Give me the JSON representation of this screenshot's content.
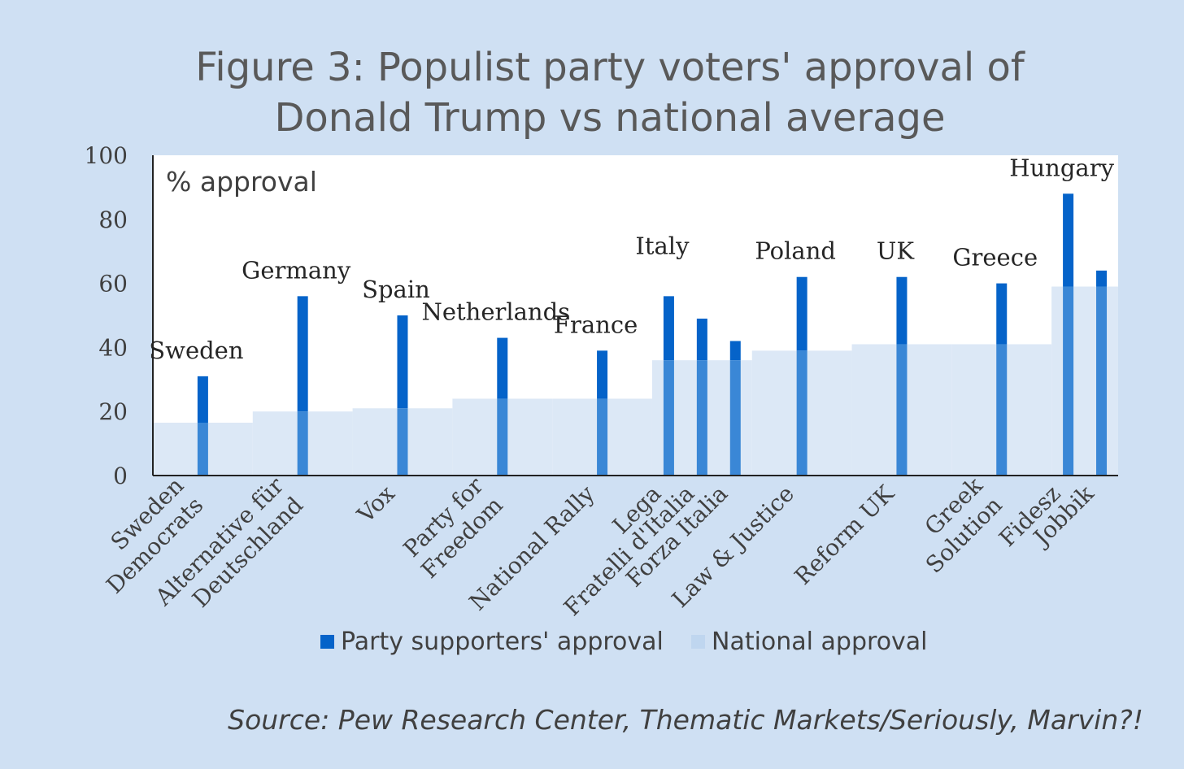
{
  "chart_data": {
    "type": "bar",
    "title": [
      "Figure 3: Populist party voters' approval of",
      "Donald Trump vs national average"
    ],
    "ylabel": "% approval",
    "ylim": [
      0,
      100
    ],
    "yticks": [
      0,
      20,
      40,
      60,
      80,
      100
    ],
    "grid": false,
    "legend_position": "bottom",
    "groups": [
      {
        "country": "Sweden",
        "national": 16.5,
        "parties": [
          null,
          {
            "name": [
              "Sweden",
              "Democrats"
            ],
            "value": 31
          },
          null
        ]
      },
      {
        "country": "Germany",
        "national": 20,
        "parties": [
          null,
          {
            "name": [
              "Alternative für",
              "Deutschland"
            ],
            "value": 56
          },
          null
        ]
      },
      {
        "country": "Spain",
        "national": 21,
        "parties": [
          null,
          {
            "name": [
              "Vox"
            ],
            "value": 50
          },
          null
        ]
      },
      {
        "country": "Netherlands",
        "national": 24,
        "parties": [
          null,
          {
            "name": [
              "Party for",
              "Freedom"
            ],
            "value": 43
          },
          null
        ]
      },
      {
        "country": "France",
        "national": 24,
        "parties": [
          null,
          {
            "name": [
              "National Rally"
            ],
            "value": 39
          },
          null
        ]
      },
      {
        "country": "Italy",
        "national": 36,
        "parties": [
          {
            "name": [
              "Lega"
            ],
            "value": 56
          },
          {
            "name": [
              "Fratelli d'Italia"
            ],
            "value": 49
          },
          {
            "name": [
              "Forza Italia"
            ],
            "value": 42
          }
        ]
      },
      {
        "country": "Poland",
        "national": 39,
        "parties": [
          null,
          {
            "name": [
              "Law & Justice"
            ],
            "value": 62
          },
          null
        ]
      },
      {
        "country": "UK",
        "national": 41,
        "parties": [
          null,
          {
            "name": [
              "Reform UK"
            ],
            "value": 62
          },
          null
        ]
      },
      {
        "country": "Greece",
        "national": 41,
        "parties": [
          null,
          {
            "name": [
              "Greek",
              "Solution"
            ],
            "value": 60
          },
          null
        ]
      },
      {
        "country": "Hungary",
        "national": 59,
        "parties": [
          {
            "name": [
              "Fidesz"
            ],
            "value": 88
          },
          {
            "name": [
              "Jobbik"
            ],
            "value": 64
          }
        ]
      }
    ],
    "series": [
      {
        "name": "Party supporters' approval",
        "color": "#0563c9"
      },
      {
        "name": "National approval",
        "color": "#dce8f6"
      }
    ]
  },
  "source": "Source: Pew Research Center, Thematic Markets/Seriously, Marvin?!"
}
